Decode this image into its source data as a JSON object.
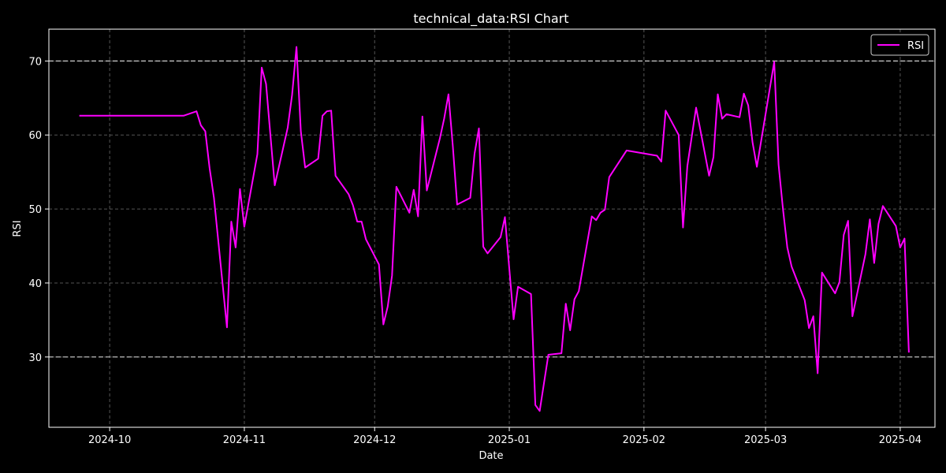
{
  "chart_data": {
    "type": "line",
    "title": "technical_data:RSI Chart",
    "xlabel": "Date",
    "ylabel": "RSI",
    "x_range": [
      "2024-09-17",
      "2025-04-09"
    ],
    "ylim": [
      20.5,
      74.3
    ],
    "yticks": [
      30,
      40,
      50,
      60,
      70
    ],
    "xticks": [
      "2024-10-01",
      "2024-11-01",
      "2024-12-01",
      "2025-01-01",
      "2025-02-01",
      "2025-03-01",
      "2025-04-01"
    ],
    "xtick_labels": [
      "2024-10",
      "2024-11",
      "2024-12",
      "2025-01",
      "2025-02",
      "2025-03",
      "2025-04"
    ],
    "grid": true,
    "legend_position": "top-right",
    "reference_lines": [
      70,
      30
    ],
    "colors": {
      "line": "#ff00ff",
      "reference": "#cccccc",
      "grid": "#555555",
      "background": "#000000"
    },
    "series": [
      {
        "name": "RSI",
        "points": [
          [
            "2024-09-24",
            62.6
          ],
          [
            "2024-10-18",
            62.6
          ],
          [
            "2024-10-21",
            63.2
          ],
          [
            "2024-10-22",
            61.3
          ],
          [
            "2024-10-23",
            60.5
          ],
          [
            "2024-10-24",
            55.5
          ],
          [
            "2024-10-25",
            51.5
          ],
          [
            "2024-10-28",
            34.0
          ],
          [
            "2024-10-29",
            48.3
          ],
          [
            "2024-10-30",
            44.8
          ],
          [
            "2024-10-31",
            52.7
          ],
          [
            "2024-11-01",
            47.6
          ],
          [
            "2024-11-04",
            57.4
          ],
          [
            "2024-11-05",
            69.1
          ],
          [
            "2024-11-06",
            66.9
          ],
          [
            "2024-11-07",
            60.0
          ],
          [
            "2024-11-08",
            53.2
          ],
          [
            "2024-11-11",
            61.0
          ],
          [
            "2024-11-12",
            65.4
          ],
          [
            "2024-11-13",
            71.9
          ],
          [
            "2024-11-14",
            60.5
          ],
          [
            "2024-11-15",
            55.6
          ],
          [
            "2024-11-18",
            56.8
          ],
          [
            "2024-11-19",
            62.6
          ],
          [
            "2024-11-20",
            63.2
          ],
          [
            "2024-11-21",
            63.3
          ],
          [
            "2024-11-22",
            54.5
          ],
          [
            "2024-11-25",
            52.0
          ],
          [
            "2024-11-26",
            50.5
          ],
          [
            "2024-11-27",
            48.3
          ],
          [
            "2024-11-28",
            48.3
          ],
          [
            "2024-11-29",
            45.9
          ],
          [
            "2024-12-02",
            42.5
          ],
          [
            "2024-12-03",
            34.4
          ],
          [
            "2024-12-04",
            36.8
          ],
          [
            "2024-12-05",
            41.0
          ],
          [
            "2024-12-06",
            53.0
          ],
          [
            "2024-12-09",
            49.5
          ],
          [
            "2024-12-10",
            52.6
          ],
          [
            "2024-12-11",
            49.0
          ],
          [
            "2024-12-12",
            62.5
          ],
          [
            "2024-12-13",
            52.5
          ],
          [
            "2024-12-16",
            59.5
          ],
          [
            "2024-12-17",
            62.2
          ],
          [
            "2024-12-18",
            65.5
          ],
          [
            "2024-12-19",
            58.5
          ],
          [
            "2024-12-20",
            50.6
          ],
          [
            "2024-12-23",
            51.5
          ],
          [
            "2024-12-24",
            57.5
          ],
          [
            "2024-12-25",
            60.9
          ],
          [
            "2024-12-26",
            44.9
          ],
          [
            "2024-12-27",
            44.0
          ],
          [
            "2024-12-30",
            46.2
          ],
          [
            "2024-12-31",
            48.9
          ],
          [
            "2025-01-02",
            35.1
          ],
          [
            "2025-01-03",
            39.5
          ],
          [
            "2025-01-06",
            38.5
          ],
          [
            "2025-01-07",
            23.5
          ],
          [
            "2025-01-08",
            22.7
          ],
          [
            "2025-01-10",
            30.3
          ],
          [
            "2025-01-13",
            30.5
          ],
          [
            "2025-01-14",
            37.2
          ],
          [
            "2025-01-15",
            33.6
          ],
          [
            "2025-01-16",
            37.8
          ],
          [
            "2025-01-17",
            38.9
          ],
          [
            "2025-01-20",
            49.0
          ],
          [
            "2025-01-21",
            48.5
          ],
          [
            "2025-01-22",
            49.5
          ],
          [
            "2025-01-23",
            49.9
          ],
          [
            "2025-01-24",
            54.3
          ],
          [
            "2025-01-28",
            57.9
          ],
          [
            "2025-02-04",
            57.2
          ],
          [
            "2025-02-05",
            56.4
          ],
          [
            "2025-02-06",
            63.3
          ],
          [
            "2025-02-09",
            60.0
          ],
          [
            "2025-02-10",
            47.5
          ],
          [
            "2025-02-11",
            55.8
          ],
          [
            "2025-02-13",
            63.7
          ],
          [
            "2025-02-16",
            54.5
          ],
          [
            "2025-02-17",
            57.0
          ],
          [
            "2025-02-18",
            65.5
          ],
          [
            "2025-02-19",
            62.2
          ],
          [
            "2025-02-20",
            62.8
          ],
          [
            "2025-02-23",
            62.4
          ],
          [
            "2025-02-24",
            65.6
          ],
          [
            "2025-02-25",
            64.0
          ],
          [
            "2025-02-26",
            59.0
          ],
          [
            "2025-02-27",
            55.7
          ],
          [
            "2025-03-03",
            69.9
          ],
          [
            "2025-03-04",
            56.0
          ],
          [
            "2025-03-05",
            50.0
          ],
          [
            "2025-03-06",
            44.8
          ],
          [
            "2025-03-07",
            42.2
          ],
          [
            "2025-03-10",
            37.7
          ],
          [
            "2025-03-11",
            33.9
          ],
          [
            "2025-03-12",
            35.5
          ],
          [
            "2025-03-13",
            27.8
          ],
          [
            "2025-03-14",
            41.4
          ],
          [
            "2025-03-17",
            38.6
          ],
          [
            "2025-03-18",
            40.1
          ],
          [
            "2025-03-19",
            46.5
          ],
          [
            "2025-03-20",
            48.4
          ],
          [
            "2025-03-21",
            35.5
          ],
          [
            "2025-03-24",
            43.9
          ],
          [
            "2025-03-25",
            48.6
          ],
          [
            "2025-03-26",
            42.7
          ],
          [
            "2025-03-27",
            48.0
          ],
          [
            "2025-03-28",
            50.4
          ],
          [
            "2025-03-31",
            47.7
          ],
          [
            "2025-04-01",
            44.8
          ],
          [
            "2025-04-02",
            46.0
          ],
          [
            "2025-04-03",
            30.6
          ]
        ]
      }
    ]
  }
}
